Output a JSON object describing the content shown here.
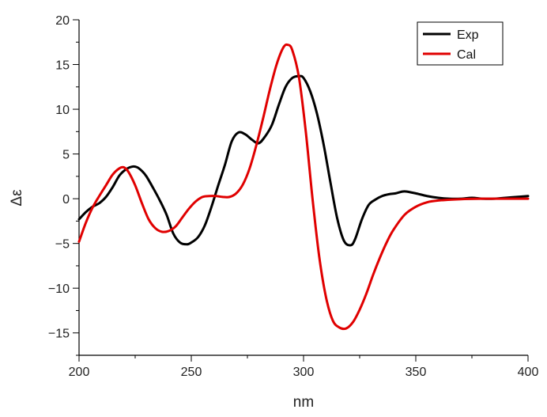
{
  "chart_data": {
    "type": "line",
    "title": "",
    "xlabel": "nm",
    "ylabel": "Δε",
    "xlim": [
      200,
      400
    ],
    "ylim": [
      -17.5,
      20
    ],
    "xticks": [
      200,
      250,
      300,
      350,
      400
    ],
    "yticks": [
      -15,
      -10,
      -5,
      0,
      5,
      10,
      15,
      20
    ],
    "xtick_labels": [
      "200",
      "250",
      "300",
      "350",
      "400"
    ],
    "ytick_labels": [
      "−15",
      "−10",
      "−5",
      "0",
      "5",
      "10",
      "15",
      "20"
    ],
    "grid": false,
    "legend_position": "top-right",
    "series": [
      {
        "name": "Exp",
        "color": "#000000",
        "x": [
          200,
          203,
          206,
          209,
          212,
          215,
          218,
          221,
          224,
          226,
          228,
          230,
          233,
          236,
          239,
          242,
          245,
          248,
          250,
          253,
          256,
          259,
          262,
          265,
          268,
          271,
          274,
          277,
          280,
          283,
          286,
          289,
          292,
          295,
          298,
          300,
          303,
          306,
          309,
          312,
          315,
          318,
          321,
          323,
          326,
          329,
          332,
          335,
          338,
          341,
          344,
          346,
          350,
          355,
          360,
          365,
          370,
          375,
          380,
          385,
          390,
          395,
          400
        ],
        "y": [
          -2.3,
          -1.5,
          -0.9,
          -0.5,
          0.2,
          1.3,
          2.6,
          3.3,
          3.6,
          3.5,
          3.1,
          2.5,
          1.2,
          -0.2,
          -1.8,
          -3.9,
          -4.9,
          -5.1,
          -4.9,
          -4.3,
          -3.0,
          -0.9,
          1.5,
          3.8,
          6.4,
          7.4,
          7.2,
          6.6,
          6.2,
          7.0,
          8.3,
          10.5,
          12.5,
          13.5,
          13.7,
          13.5,
          12.0,
          9.5,
          6.0,
          1.8,
          -2.2,
          -4.7,
          -5.2,
          -4.5,
          -2.3,
          -0.7,
          -0.1,
          0.3,
          0.5,
          0.6,
          0.8,
          0.8,
          0.6,
          0.3,
          0.1,
          0.0,
          0.0,
          0.1,
          0.0,
          0.0,
          0.1,
          0.2,
          0.3
        ]
      },
      {
        "name": "Cal",
        "color": "#e00000",
        "x": [
          200,
          203,
          206,
          209,
          212,
          215,
          218,
          220,
          222,
          225,
          228,
          231,
          234,
          237,
          240,
          243,
          246,
          249,
          252,
          255,
          258,
          261,
          264,
          267,
          270,
          273,
          276,
          279,
          282,
          285,
          288,
          291,
          293,
          295,
          298,
          301,
          304,
          307,
          310,
          313,
          316,
          319,
          322,
          325,
          328,
          331,
          334,
          337,
          340,
          345,
          350,
          355,
          360,
          370,
          380,
          390,
          400
        ],
        "y": [
          -4.8,
          -2.7,
          -1.0,
          0.3,
          1.5,
          2.7,
          3.4,
          3.5,
          3.0,
          1.5,
          -0.5,
          -2.3,
          -3.3,
          -3.7,
          -3.6,
          -3.1,
          -2.1,
          -1.1,
          -0.3,
          0.2,
          0.3,
          0.3,
          0.2,
          0.2,
          0.6,
          1.6,
          3.4,
          6.0,
          9.0,
          12.2,
          15.0,
          16.9,
          17.2,
          16.6,
          13.5,
          7.5,
          0.0,
          -6.5,
          -11.0,
          -13.6,
          -14.4,
          -14.5,
          -13.8,
          -12.4,
          -10.6,
          -8.5,
          -6.6,
          -4.9,
          -3.5,
          -1.8,
          -0.9,
          -0.4,
          -0.2,
          -0.05,
          0.0,
          0.0,
          0.0
        ]
      }
    ]
  }
}
